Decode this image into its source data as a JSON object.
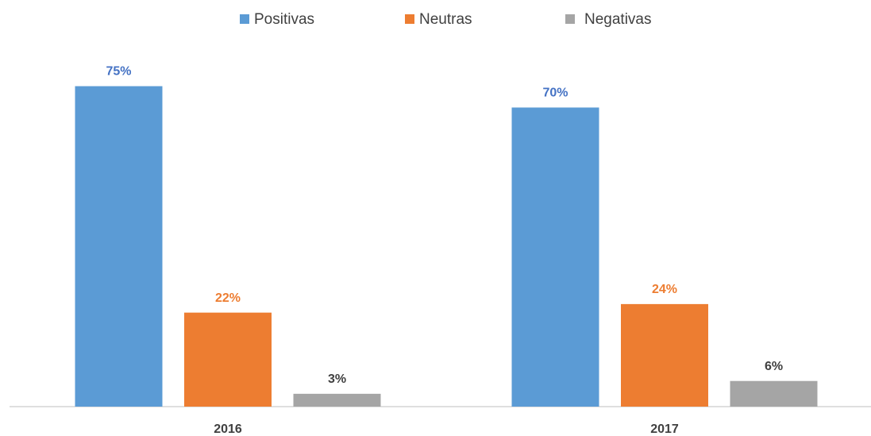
{
  "chart_data": {
    "type": "bar",
    "categories": [
      "2016",
      "2017"
    ],
    "series": [
      {
        "name": "Positivas",
        "color": "#5b9bd5",
        "label_color": "#4472c4",
        "values": [
          75,
          70
        ],
        "value_labels": [
          "75%",
          "70%"
        ]
      },
      {
        "name": "Neutras",
        "color": "#ed7d31",
        "label_color": "#ed7d31",
        "values": [
          22,
          24
        ],
        "value_labels": [
          "22%",
          "24%"
        ]
      },
      {
        "name": "Negativas",
        "color": "#a5a5a5",
        "label_color": "#404040",
        "values": [
          3,
          6
        ],
        "value_labels": [
          "3%",
          "6%"
        ]
      }
    ],
    "legend": "top"
  }
}
